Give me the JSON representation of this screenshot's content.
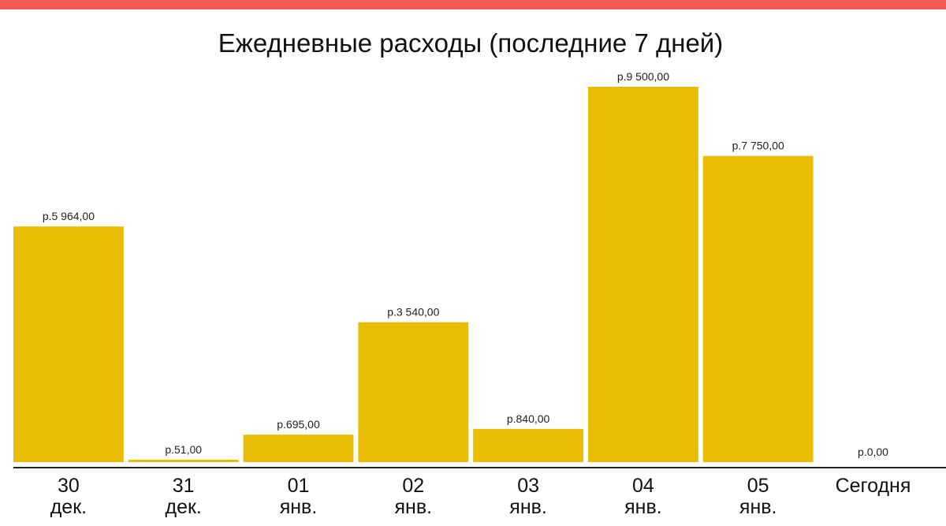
{
  "colors": {
    "top_strip": "#f55a56",
    "bar": "#e8bd05",
    "axis": "#222222"
  },
  "chart_data": {
    "type": "bar",
    "title": "Ежедневные расходы (последние 7 дней)",
    "xlabel": "",
    "ylabel": "",
    "grid": false,
    "legend": "none",
    "ylim": [
      0,
      9500
    ],
    "categories": [
      {
        "line1": "30",
        "line2": "дек."
      },
      {
        "line1": "31",
        "line2": "дек."
      },
      {
        "line1": "01",
        "line2": "янв."
      },
      {
        "line1": "02",
        "line2": "янв."
      },
      {
        "line1": "03",
        "line2": "янв."
      },
      {
        "line1": "04",
        "line2": "янв."
      },
      {
        "line1": "05",
        "line2": "янв."
      },
      {
        "line1": "Сегодня",
        "line2": ""
      }
    ],
    "values": [
      5964,
      51,
      695,
      3540,
      840,
      9500,
      7750,
      0
    ],
    "value_labels": [
      "р.5 964,00",
      "р.51,00",
      "р.695,00",
      "р.3 540,00",
      "р.840,00",
      "р.9 500,00",
      "р.7 750,00",
      "р.0,00"
    ]
  }
}
